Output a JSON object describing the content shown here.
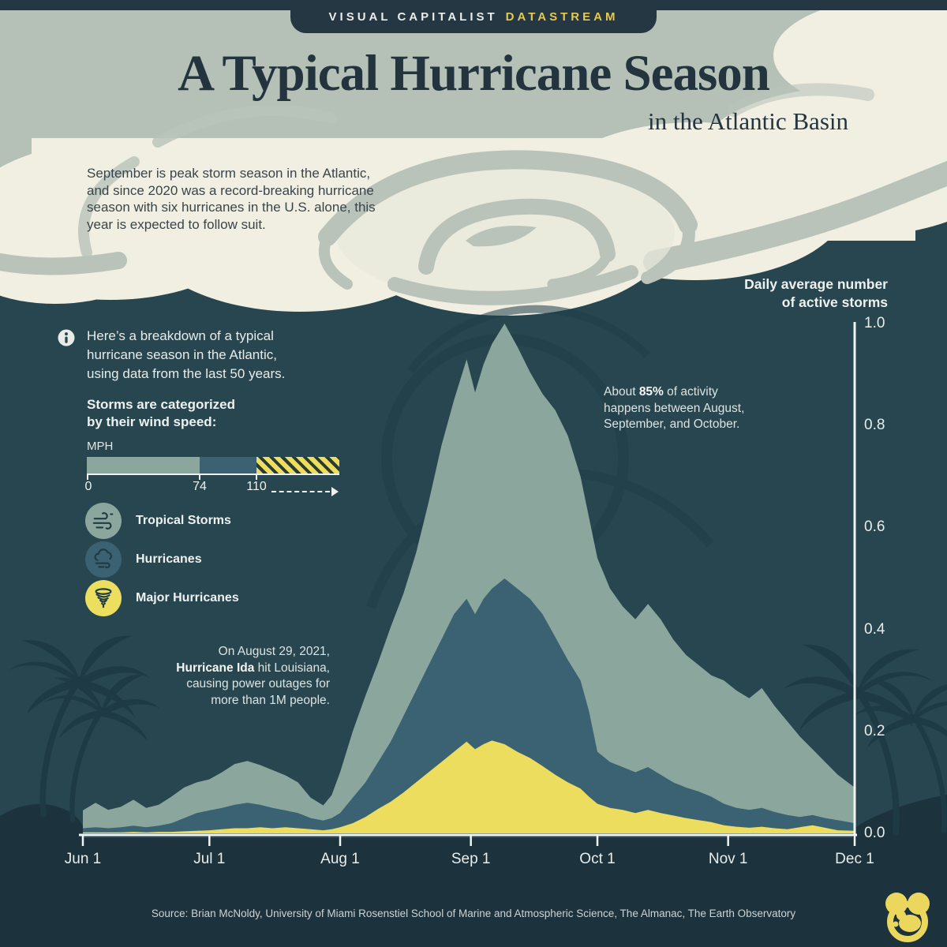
{
  "banner": {
    "brand": "VISUAL CAPITALIST",
    "product": "DATASTREAM"
  },
  "title": "A Typical Hurricane Season",
  "subtitle": "in the Atlantic Basin",
  "intro_lines": [
    "September is peak storm season in the Atlantic,",
    "and since 2020 was a record-breaking hurricane",
    "season with six hurricanes in the U.S. alone, this",
    "year is expected to follow suit."
  ],
  "breakdown": {
    "icon": "info-icon",
    "lines": [
      "Here’s a breakdown of a typical",
      "hurricane season in the Atlantic,",
      "using data from the last 50 years."
    ]
  },
  "wind_speed": {
    "heading_lines": [
      "Storms are categorized",
      "by their wind speed:"
    ],
    "unit": "MPH",
    "tick_labels": [
      "0",
      "74",
      "110"
    ],
    "open_ended": true
  },
  "legend": [
    {
      "label": "Tropical Storms",
      "icon": "wind-icon",
      "color": "#8ba79d"
    },
    {
      "label": "Hurricanes",
      "icon": "storm-cloud-icon",
      "color": "#3a6273"
    },
    {
      "label": "Major Hurricanes",
      "icon": "tornado-icon",
      "color": "#ecde5f"
    }
  ],
  "chart_data": {
    "type": "area",
    "stacked": true,
    "axis_title_lines": [
      "Daily average number",
      "of active storms"
    ],
    "x_tick_labels": [
      "Jun 1",
      "Jul 1",
      "Aug 1",
      "Sep 1",
      "Oct 1",
      "Nov 1",
      "Dec 1"
    ],
    "x_tick_days": [
      0,
      30,
      61,
      92,
      122,
      153,
      183
    ],
    "x_range_days": [
      0,
      183
    ],
    "y_ticks": [
      0,
      0.2,
      0.4,
      0.6,
      0.8,
      1.0
    ],
    "y_tick_labels": [
      "0.0",
      "0.2",
      "0.4",
      "0.6",
      "0.8",
      "1.0"
    ],
    "ylim": [
      0,
      1.0
    ],
    "grid": false,
    "values_note": "values are stacked cumulative tops (storms/day); series order bottom-to-top: Major Hurricanes, Hurricanes, Tropical Storms",
    "days": [
      0,
      3,
      6,
      9,
      12,
      15,
      18,
      21,
      24,
      27,
      30,
      33,
      36,
      39,
      42,
      45,
      48,
      51,
      54,
      57,
      59,
      61,
      64,
      67,
      70,
      73,
      76,
      79,
      82,
      85,
      88,
      91,
      93,
      95,
      97,
      100,
      103,
      106,
      109,
      112,
      115,
      118,
      120,
      122,
      125,
      128,
      131,
      134,
      137,
      140,
      143,
      146,
      149,
      152,
      155,
      158,
      161,
      164,
      167,
      170,
      173,
      176,
      179,
      183
    ],
    "series": [
      {
        "name": "Major Hurricanes",
        "color": "#ecdd5e",
        "cumulative_top": [
          0.002,
          0.002,
          0.002,
          0.002,
          0.003,
          0.002,
          0.003,
          0.003,
          0.004,
          0.005,
          0.006,
          0.008,
          0.01,
          0.01,
          0.012,
          0.01,
          0.012,
          0.01,
          0.008,
          0.006,
          0.008,
          0.012,
          0.02,
          0.032,
          0.048,
          0.062,
          0.08,
          0.1,
          0.12,
          0.14,
          0.16,
          0.18,
          0.165,
          0.175,
          0.182,
          0.175,
          0.16,
          0.148,
          0.132,
          0.115,
          0.1,
          0.088,
          0.072,
          0.058,
          0.05,
          0.046,
          0.04,
          0.046,
          0.04,
          0.035,
          0.03,
          0.026,
          0.022,
          0.016,
          0.013,
          0.011,
          0.013,
          0.01,
          0.008,
          0.012,
          0.016,
          0.011,
          0.006,
          0.005
        ]
      },
      {
        "name": "Hurricanes",
        "color": "#3a6273",
        "cumulative_top": [
          0.01,
          0.012,
          0.01,
          0.012,
          0.015,
          0.012,
          0.015,
          0.02,
          0.03,
          0.04,
          0.045,
          0.05,
          0.056,
          0.06,
          0.056,
          0.05,
          0.045,
          0.04,
          0.03,
          0.025,
          0.03,
          0.04,
          0.07,
          0.1,
          0.14,
          0.18,
          0.23,
          0.28,
          0.33,
          0.38,
          0.43,
          0.46,
          0.43,
          0.46,
          0.48,
          0.5,
          0.48,
          0.46,
          0.43,
          0.385,
          0.34,
          0.3,
          0.24,
          0.16,
          0.14,
          0.13,
          0.12,
          0.13,
          0.115,
          0.1,
          0.09,
          0.082,
          0.072,
          0.058,
          0.05,
          0.046,
          0.05,
          0.042,
          0.036,
          0.032,
          0.036,
          0.03,
          0.026,
          0.02
        ]
      },
      {
        "name": "Tropical Storms",
        "color": "#8ba79d",
        "cumulative_top": [
          0.045,
          0.06,
          0.046,
          0.052,
          0.066,
          0.05,
          0.056,
          0.072,
          0.09,
          0.1,
          0.106,
          0.12,
          0.136,
          0.142,
          0.134,
          0.124,
          0.114,
          0.1,
          0.07,
          0.055,
          0.075,
          0.12,
          0.2,
          0.27,
          0.335,
          0.405,
          0.47,
          0.55,
          0.65,
          0.76,
          0.85,
          0.93,
          0.865,
          0.92,
          0.96,
          1.0,
          0.955,
          0.905,
          0.862,
          0.83,
          0.78,
          0.7,
          0.62,
          0.54,
          0.48,
          0.445,
          0.42,
          0.45,
          0.42,
          0.38,
          0.35,
          0.33,
          0.31,
          0.3,
          0.28,
          0.265,
          0.285,
          0.25,
          0.22,
          0.19,
          0.165,
          0.14,
          0.115,
          0.09
        ]
      }
    ],
    "annotations": {
      "peak": {
        "pre": "About ",
        "bold": "85%",
        "post": " of activity",
        "line2": "happens between August,",
        "line3": "September, and October."
      },
      "ida": {
        "line1": "On August 29, 2021,",
        "bold": "Hurricane Ida",
        "line2_post": " hit Louisiana,",
        "line3": "causing power outages for",
        "line4": "more than 1M people."
      }
    }
  },
  "source": "Source: Brian McNoldy, University of Miami Rosenstiel School of Marine and Atmospheric Science, The Almanac, The Earth Observatory",
  "logo": {
    "name": "visual-capitalist-logo"
  },
  "colors": {
    "background": "#274650",
    "footer_ground": "#1c333e",
    "banner": "#243743",
    "headline": "#24343f",
    "cloud_cream": "#f1efe2",
    "cloud_sage": "#b5c0b6",
    "swirl_gray": "#b9c3ba",
    "accent_yellow": "#e5c94f",
    "tropical": "#8ba79d",
    "hurricane": "#3a6273",
    "major": "#ecdd5e"
  }
}
